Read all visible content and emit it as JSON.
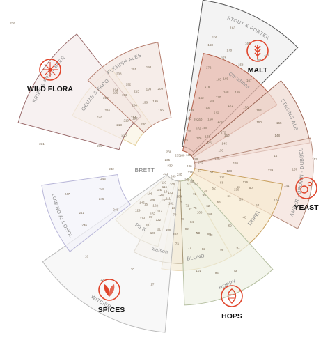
{
  "center_label": "BRETT",
  "categories": [
    {
      "name": "WILD FLORA",
      "icon": "dandelion-icon",
      "color": "#e0442a"
    },
    {
      "name": "MALT",
      "icon": "wheat-icon",
      "color": "#e0442a"
    },
    {
      "name": "YEAST",
      "icon": "yeast-cell-icon",
      "color": "#e0442a"
    },
    {
      "name": "SPICES",
      "icon": "leaves-icon",
      "color": "#e0442a"
    },
    {
      "name": "HOPS",
      "icon": "hop-cone-icon",
      "color": "#e0442a"
    }
  ],
  "styles": {
    "kriek": "KRIEK & FRUIT BEER",
    "flemish": "FLEMISH ALES",
    "gueuze": "GEUZE & FARO",
    "stout": "STOUT & PORTER",
    "christmas": "Christmas",
    "strong": "STRONG ALE",
    "amber": "AMBER - BROWN - DUBBEL",
    "tripel": "TRIPEL",
    "blond": "BLOND",
    "hoppy": "HOPPY",
    "saison": "Saison",
    "pils": "PILS",
    "witbier": "WITBIER",
    "lowno": "LOW/NO ALCOHOL"
  },
  "scattered_numbers": {
    "stout": [
      "183",
      "175",
      "158",
      "168",
      "166",
      "181",
      "162",
      "164",
      "172",
      "163",
      "168",
      "175",
      "165",
      "176",
      "172",
      "169",
      "167",
      "161",
      "158",
      "164",
      "178",
      "171",
      "166",
      "159",
      "157"
    ],
    "christmas": [
      "179",
      "170",
      "173",
      "178",
      "168",
      "176",
      "160",
      "169",
      "172",
      "165",
      "174"
    ],
    "strong": [
      "140",
      "150",
      "153",
      "163",
      "145",
      "148",
      "160",
      "155"
    ],
    "amber": [
      "125",
      "139",
      "132",
      "147",
      "128",
      "134",
      "136",
      "141",
      "130",
      "137",
      "126",
      "143"
    ],
    "wild": [
      "228",
      "234",
      "222",
      "236",
      "227",
      "225",
      "223",
      "220",
      "221",
      "230",
      "226",
      "219",
      "231"
    ],
    "flemish": [
      "197",
      "192",
      "199",
      "194",
      "196",
      "198",
      "200",
      "201",
      "209",
      "208",
      "199",
      "220",
      "215",
      "195",
      "193"
    ],
    "gueuze": [
      "218",
      "216",
      "214",
      "222",
      "219",
      "225",
      "213",
      "217"
    ],
    "tripel": [
      "51",
      "55",
      "49",
      "50",
      "52",
      "59",
      "58",
      "48",
      "62",
      "54",
      "56",
      "57",
      "61",
      "67",
      "56"
    ],
    "blond": [
      "72",
      "74",
      "76",
      "80",
      "71",
      "73",
      "75",
      "77",
      "79",
      "82",
      "78",
      "81",
      "84",
      "63"
    ],
    "hoppy": [
      "95",
      "99",
      "97",
      "91",
      "100",
      "101",
      "109",
      "94",
      "92",
      "96",
      "98",
      "88",
      "89"
    ],
    "pils": [
      "142",
      "137",
      "121",
      "122",
      "125",
      "129",
      "118",
      "119",
      "106",
      "107",
      "108",
      "105",
      "102",
      "110",
      "117",
      "116",
      "146",
      "134"
    ],
    "saison": [
      "104",
      "108",
      "111",
      "103",
      "102",
      "106"
    ],
    "witbier": [
      "23",
      "20",
      "15",
      "17",
      "19",
      "18",
      "21",
      "22"
    ],
    "lowno": [
      "248",
      "241",
      "249",
      "246",
      "245",
      "247"
    ],
    "center": [
      "180",
      "182",
      "189",
      "186",
      "226",
      "239",
      "240",
      "243",
      "237",
      "232",
      "235",
      "238",
      "233"
    ],
    "outer": [
      "236",
      "215",
      "153",
      "231",
      "242",
      "245"
    ]
  }
}
